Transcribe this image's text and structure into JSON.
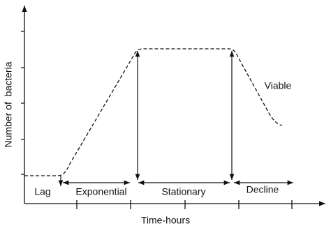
{
  "diagram": {
    "y_axis_label": "Number of  bacteria",
    "x_axis_label": "Time-hours",
    "curve_label": "Viable",
    "phases": [
      "Lag",
      "Exponential",
      "Stationary",
      "Decline"
    ]
  }
}
